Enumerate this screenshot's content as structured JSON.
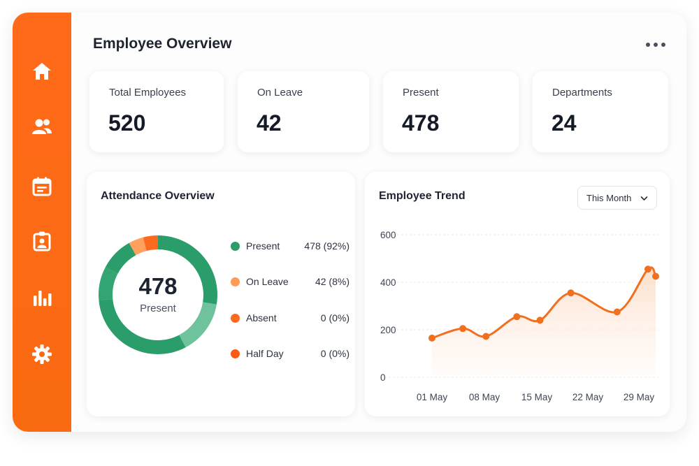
{
  "sidebar": {
    "items": [
      {
        "name": "home",
        "icon": "home-icon"
      },
      {
        "name": "employees",
        "icon": "users-icon"
      },
      {
        "name": "calendar",
        "icon": "calendar-icon"
      },
      {
        "name": "badge",
        "icon": "id-badge-icon"
      },
      {
        "name": "reports",
        "icon": "bar-chart-icon"
      },
      {
        "name": "settings",
        "icon": "gear-icon"
      }
    ],
    "color": "#ff6a1a"
  },
  "header": {
    "title": "Employee Overview",
    "more_icon": "more-horizontal-icon"
  },
  "stats": [
    {
      "label": "Total Employees",
      "value": "520"
    },
    {
      "label": "On Leave",
      "value": "42"
    },
    {
      "label": "Present",
      "value": "478"
    },
    {
      "label": "Departments",
      "value": "24"
    }
  ],
  "attendance": {
    "title": "Attendance Overview",
    "center_value": "478",
    "center_label": "Present",
    "legend": [
      {
        "name": "Present",
        "value": "478 (92%)",
        "color": "#2a9d6b"
      },
      {
        "name": "On Leave",
        "value": "42 (8%)",
        "color": "#ff9a57"
      },
      {
        "name": "Absent",
        "value": "0 (0%)",
        "color": "#fb6a1e"
      },
      {
        "name": "Half Day",
        "value": "0 (0%)",
        "color": "#fb5a14"
      }
    ]
  },
  "trend": {
    "title": "Employee Trend",
    "period": "This Month",
    "period_icon": "chevron-down-icon"
  },
  "chart_data": [
    {
      "type": "pie",
      "categories": [
        "Present",
        "On Leave",
        "Absent",
        "Half Day"
      ],
      "values": [
        478,
        42,
        0,
        0
      ],
      "colors": [
        "#2a9d6b",
        "#ff9a57",
        "#fb6a1e",
        "#fb5a14"
      ]
    },
    {
      "type": "area",
      "title": "Employee Trend",
      "x_ticks": [
        "01 May",
        "08 May",
        "15 May",
        "22 May",
        "29 May"
      ],
      "y_ticks": [
        0,
        200,
        400,
        600
      ],
      "ylim": [
        0,
        600
      ],
      "xlim": [
        1,
        30
      ],
      "grid": true,
      "line_color": "#f07020",
      "points": [
        {
          "x": 1,
          "y": 165
        },
        {
          "x": 5,
          "y": 205
        },
        {
          "x": 8,
          "y": 172
        },
        {
          "x": 12,
          "y": 255
        },
        {
          "x": 15,
          "y": 240
        },
        {
          "x": 19,
          "y": 355
        },
        {
          "x": 25,
          "y": 275
        },
        {
          "x": 29,
          "y": 455
        },
        {
          "x": 30,
          "y": 425
        }
      ]
    }
  ]
}
